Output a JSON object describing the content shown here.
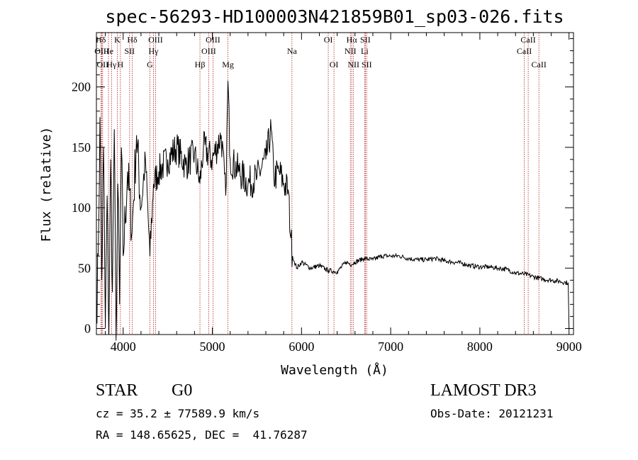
{
  "chart_data": {
    "type": "line",
    "title": "spec-56293-HD100003N421859B01_sp03-026.fits",
    "xlabel": "Wavelength (Å)",
    "ylabel": "Flux (relative)",
    "xlim": [
      3700,
      9050
    ],
    "ylim": [
      -5,
      245
    ],
    "xticks": [
      4000,
      5000,
      6000,
      7000,
      8000,
      9000
    ],
    "yticks": [
      0,
      50,
      100,
      150,
      200
    ],
    "grid": false,
    "series": [
      {
        "name": "spectrum",
        "x": [
          3700,
          3720,
          3740,
          3760,
          3780,
          3800,
          3820,
          3840,
          3860,
          3880,
          3900,
          3920,
          3940,
          3960,
          3980,
          4000,
          4050,
          4100,
          4150,
          4200,
          4250,
          4300,
          4340,
          4400,
          4500,
          4600,
          4700,
          4800,
          4861,
          4900,
          5000,
          5100,
          5150,
          5175,
          5200,
          5300,
          5400,
          5500,
          5600,
          5660,
          5690,
          5750,
          5800,
          5850,
          5880,
          5900,
          5920,
          5950,
          6000,
          6100,
          6200,
          6300,
          6400,
          6500,
          6563,
          6600,
          6700,
          6800,
          6900,
          7000,
          7100,
          7200,
          7300,
          7400,
          7500,
          7600,
          7700,
          7800,
          7900,
          8000,
          8100,
          8200,
          8300,
          8400,
          8500,
          8600,
          8700,
          8800,
          8900,
          8960,
          8990,
          9000
        ],
        "y": [
          10,
          60,
          175,
          40,
          150,
          0,
          110,
          -5,
          140,
          30,
          165,
          -10,
          120,
          20,
          150,
          60,
          130,
          80,
          160,
          100,
          140,
          60,
          120,
          130,
          140,
          150,
          135,
          145,
          120,
          150,
          140,
          160,
          110,
          205,
          140,
          130,
          120,
          125,
          140,
          165,
          125,
          130,
          120,
          115,
          75,
          60,
          55,
          50,
          55,
          50,
          52,
          48,
          47,
          55,
          53,
          55,
          58,
          57,
          60,
          60,
          60,
          58,
          57,
          57,
          58,
          56,
          55,
          54,
          52,
          51,
          51,
          50,
          49,
          46,
          45,
          43,
          41,
          40,
          39,
          38,
          38,
          0
        ]
      }
    ],
    "line_markers": [
      {
        "x": 3750,
        "row": 1,
        "label": "Hδ"
      },
      {
        "x": 3760,
        "row": 2,
        "label": "OIII"
      },
      {
        "x": 3770,
        "row": 3,
        "label": "OII"
      },
      {
        "x": 3835,
        "row": 2,
        "label": "He"
      },
      {
        "x": 3870,
        "row": 3,
        "label": "Hγ"
      },
      {
        "x": 3934,
        "row": 1,
        "label": "K"
      },
      {
        "x": 3969,
        "row": 3,
        "label": "H"
      },
      {
        "x": 4072,
        "row": 2,
        "label": "SII"
      },
      {
        "x": 4102,
        "row": 1,
        "label": "Hδ"
      },
      {
        "x": 4300,
        "row": 3,
        "label": "G"
      },
      {
        "x": 4340,
        "row": 2,
        "label": "Hγ"
      },
      {
        "x": 4363,
        "row": 1,
        "label": "OIII"
      },
      {
        "x": 4861,
        "row": 3,
        "label": "Hβ"
      },
      {
        "x": 4959,
        "row": 2,
        "label": "OIII"
      },
      {
        "x": 5007,
        "row": 1,
        "label": "OIII"
      },
      {
        "x": 5175,
        "row": 3,
        "label": "Mg"
      },
      {
        "x": 5893,
        "row": 2,
        "label": "Na"
      },
      {
        "x": 6300,
        "row": 1,
        "label": "OI"
      },
      {
        "x": 6364,
        "row": 3,
        "label": "OI"
      },
      {
        "x": 6548,
        "row": 2,
        "label": "NII"
      },
      {
        "x": 6563,
        "row": 1,
        "label": "Hα"
      },
      {
        "x": 6583,
        "row": 3,
        "label": "NII"
      },
      {
        "x": 6708,
        "row": 2,
        "label": "Li"
      },
      {
        "x": 6716,
        "row": 1,
        "label": "SII"
      },
      {
        "x": 6731,
        "row": 3,
        "label": "SII"
      },
      {
        "x": 8498,
        "row": 2,
        "label": "CaII"
      },
      {
        "x": 8542,
        "row": 1,
        "label": "CaII"
      },
      {
        "x": 8662,
        "row": 3,
        "label": "CaII"
      }
    ]
  },
  "info": {
    "object_class": "STAR",
    "subclass": "G0",
    "survey": "LAMOST DR3",
    "redshift_line": "cz = 35.2 ± 77589.9 km/s",
    "obs_date": "Obs-Date: 20121231",
    "coords": "RA = 148.65625, DEC =  41.76287"
  },
  "colors": {
    "spectrum": "#000000",
    "marker_line": "#b22222",
    "text": "#000000"
  }
}
